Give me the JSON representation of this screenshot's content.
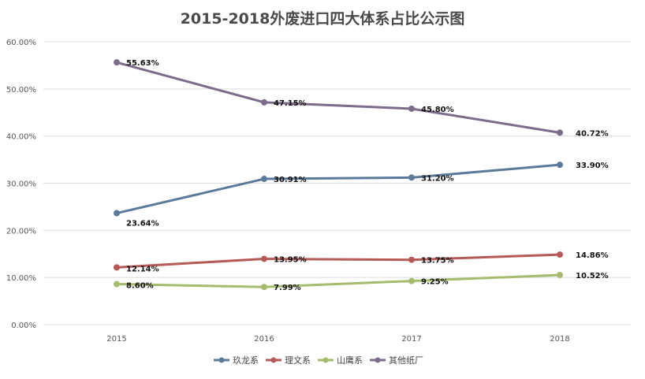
{
  "chart_data": {
    "type": "line",
    "title": "2015-2018外废进口四大体系占比公示图",
    "xlabel": "",
    "ylabel": "",
    "x": [
      "2015",
      "2016",
      "2017",
      "2018"
    ],
    "ylim": [
      0,
      60
    ],
    "y_ticks": [
      "0.00%",
      "10.00%",
      "20.00%",
      "30.00%",
      "40.00%",
      "50.00%",
      "60.00%"
    ],
    "grid": true,
    "legend_position": "bottom",
    "series": [
      {
        "name": "玖龙系",
        "color": "#5b7a99",
        "values": [
          23.64,
          30.91,
          31.2,
          33.9
        ],
        "labels": [
          "23.64%",
          "30.91%",
          "31.20%",
          "33.90%"
        ]
      },
      {
        "name": "理文系",
        "color": "#b65a57",
        "values": [
          12.14,
          13.95,
          13.75,
          14.86
        ],
        "labels": [
          "12.14%",
          "13.95%",
          "13.75%",
          "14.86%"
        ]
      },
      {
        "name": "山鹰系",
        "color": "#a5bb6e",
        "values": [
          8.6,
          7.99,
          9.25,
          10.52
        ],
        "labels": [
          "8.60%",
          "7.99%",
          "9.25%",
          "10.52%"
        ]
      },
      {
        "name": "其他纸厂",
        "color": "#7d6b8c",
        "values": [
          55.63,
          47.15,
          45.8,
          40.72
        ],
        "labels": [
          "55.63%",
          "47.15%",
          "45.80%",
          "40.72%"
        ]
      }
    ]
  }
}
